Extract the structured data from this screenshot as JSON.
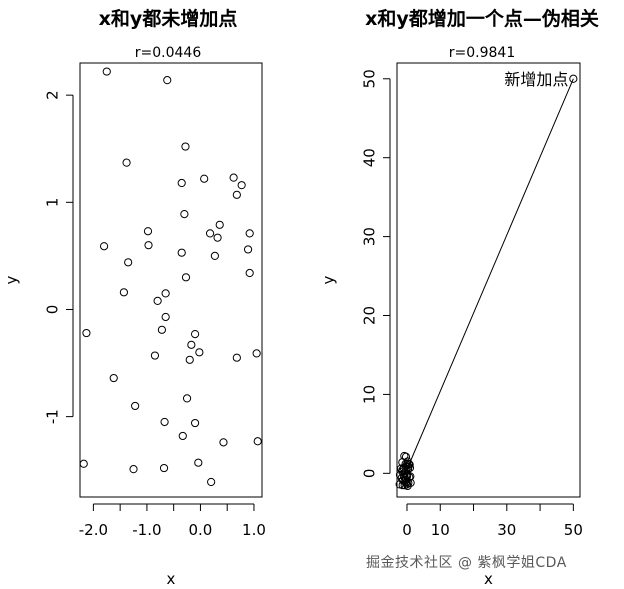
{
  "chart_data": [
    {
      "type": "scatter",
      "title": "x和y都未增加点",
      "subtitle": "r=0.0446",
      "xlabel": "x",
      "ylabel": "y",
      "xlim": [
        -2.25,
        1.15
      ],
      "ylim": [
        -1.75,
        2.3
      ],
      "x_ticks": [
        -2.0,
        -1.5,
        -1.0,
        -0.5,
        0.0,
        0.5,
        1.0
      ],
      "x_tick_labels": [
        "-2.0",
        "",
        "-1.0",
        "",
        "0.0",
        "",
        "1.0"
      ],
      "y_ticks": [
        -1,
        0,
        1,
        2
      ],
      "y_tick_labels": [
        "-1",
        "0",
        "1",
        "2"
      ],
      "grid": false,
      "points": [
        {
          "x": -1.75,
          "y": 2.22
        },
        {
          "x": -0.62,
          "y": 2.14
        },
        {
          "x": -0.28,
          "y": 1.52
        },
        {
          "x": -1.38,
          "y": 1.37
        },
        {
          "x": -0.35,
          "y": 1.18
        },
        {
          "x": 0.07,
          "y": 1.22
        },
        {
          "x": 0.62,
          "y": 1.23
        },
        {
          "x": 0.77,
          "y": 1.16
        },
        {
          "x": 0.68,
          "y": 1.07
        },
        {
          "x": -0.3,
          "y": 0.89
        },
        {
          "x": 0.36,
          "y": 0.79
        },
        {
          "x": -0.98,
          "y": 0.73
        },
        {
          "x": 0.18,
          "y": 0.71
        },
        {
          "x": 0.92,
          "y": 0.71
        },
        {
          "x": 0.32,
          "y": 0.67
        },
        {
          "x": -1.8,
          "y": 0.59
        },
        {
          "x": -0.97,
          "y": 0.6
        },
        {
          "x": 0.89,
          "y": 0.56
        },
        {
          "x": -0.35,
          "y": 0.53
        },
        {
          "x": 0.27,
          "y": 0.5
        },
        {
          "x": -1.35,
          "y": 0.44
        },
        {
          "x": 0.92,
          "y": 0.34
        },
        {
          "x": -0.27,
          "y": 0.3
        },
        {
          "x": -1.43,
          "y": 0.16
        },
        {
          "x": -0.65,
          "y": 0.15
        },
        {
          "x": -0.8,
          "y": 0.08
        },
        {
          "x": -0.65,
          "y": -0.07
        },
        {
          "x": -2.13,
          "y": -0.22
        },
        {
          "x": -0.72,
          "y": -0.19
        },
        {
          "x": -0.1,
          "y": -0.23
        },
        {
          "x": -0.17,
          "y": -0.33
        },
        {
          "x": -0.02,
          "y": -0.4
        },
        {
          "x": -0.85,
          "y": -0.43
        },
        {
          "x": 1.05,
          "y": -0.41
        },
        {
          "x": -0.2,
          "y": -0.47
        },
        {
          "x": 0.68,
          "y": -0.45
        },
        {
          "x": -1.62,
          "y": -0.64
        },
        {
          "x": -0.25,
          "y": -0.83
        },
        {
          "x": -1.22,
          "y": -0.9
        },
        {
          "x": -0.67,
          "y": -1.05
        },
        {
          "x": -0.1,
          "y": -1.06
        },
        {
          "x": -0.33,
          "y": -1.18
        },
        {
          "x": 0.43,
          "y": -1.24
        },
        {
          "x": 1.07,
          "y": -1.23
        },
        {
          "x": -2.18,
          "y": -1.44
        },
        {
          "x": -0.04,
          "y": -1.43
        },
        {
          "x": -1.25,
          "y": -1.49
        },
        {
          "x": -0.68,
          "y": -1.48
        },
        {
          "x": 0.2,
          "y": -1.61
        }
      ]
    },
    {
      "type": "scatter",
      "title": "x和y都增加一个点—伪相关",
      "subtitle": "r=0.9841",
      "xlabel": "x",
      "ylabel": "y",
      "xlim": [
        -3,
        52
      ],
      "ylim": [
        -3,
        52
      ],
      "x_ticks": [
        0,
        10,
        20,
        30,
        40,
        50
      ],
      "x_tick_labels": [
        "0",
        "10",
        "",
        "30",
        "",
        "50"
      ],
      "y_ticks": [
        0,
        10,
        20,
        30,
        40,
        50
      ],
      "y_tick_labels": [
        "0",
        "10",
        "20",
        "30",
        "40",
        "50"
      ],
      "grid": false,
      "fit_line": {
        "from": [
          0,
          0.5
        ],
        "to": [
          50,
          50
        ]
      },
      "annotation": {
        "text": "新增加点",
        "x": 50,
        "y": 50
      },
      "points": [
        {
          "x": -0.8,
          "y": 2.2
        },
        {
          "x": -0.3,
          "y": 2.1
        },
        {
          "x": 0.2,
          "y": 1.5
        },
        {
          "x": -1.4,
          "y": 1.4
        },
        {
          "x": -0.4,
          "y": 1.2
        },
        {
          "x": 0.1,
          "y": 1.2
        },
        {
          "x": 0.6,
          "y": 1.2
        },
        {
          "x": 0.8,
          "y": 1.1
        },
        {
          "x": -0.3,
          "y": 0.9
        },
        {
          "x": 0.4,
          "y": 0.8
        },
        {
          "x": -1.0,
          "y": 0.7
        },
        {
          "x": 0.9,
          "y": 0.7
        },
        {
          "x": -1.8,
          "y": 0.6
        },
        {
          "x": 0.3,
          "y": 0.5
        },
        {
          "x": -1.4,
          "y": 0.4
        },
        {
          "x": -0.3,
          "y": 0.3
        },
        {
          "x": -1.4,
          "y": 0.2
        },
        {
          "x": -0.7,
          "y": 0.1
        },
        {
          "x": -0.7,
          "y": -0.1
        },
        {
          "x": -2.1,
          "y": -0.2
        },
        {
          "x": -0.1,
          "y": -0.2
        },
        {
          "x": -0.2,
          "y": -0.3
        },
        {
          "x": 0.0,
          "y": -0.4
        },
        {
          "x": -0.9,
          "y": -0.4
        },
        {
          "x": 1.0,
          "y": -0.4
        },
        {
          "x": 0.7,
          "y": -0.5
        },
        {
          "x": -1.6,
          "y": -0.6
        },
        {
          "x": -0.3,
          "y": -0.8
        },
        {
          "x": -1.2,
          "y": -0.9
        },
        {
          "x": -0.7,
          "y": -1.0
        },
        {
          "x": -0.1,
          "y": -1.1
        },
        {
          "x": -0.3,
          "y": -1.2
        },
        {
          "x": 0.4,
          "y": -1.2
        },
        {
          "x": 1.1,
          "y": -1.2
        },
        {
          "x": -2.2,
          "y": -1.4
        },
        {
          "x": 0.0,
          "y": -1.4
        },
        {
          "x": -1.3,
          "y": -1.5
        },
        {
          "x": -0.7,
          "y": -1.5
        },
        {
          "x": 0.2,
          "y": -1.6
        },
        {
          "x": 50,
          "y": 50
        }
      ]
    }
  ],
  "watermark": "掘金技术社区 @ 紫枫学姐CDA"
}
